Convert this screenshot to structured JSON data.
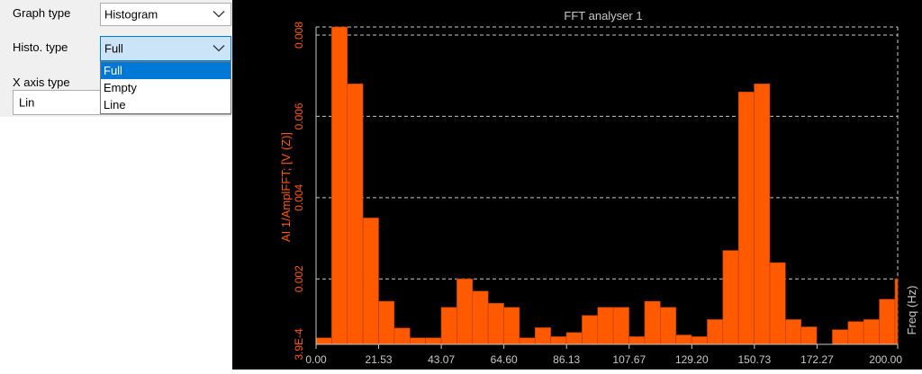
{
  "panel": {
    "graph_type_label": "Graph type",
    "graph_type_value": "Histogram",
    "histo_type_label": "Histo. type",
    "histo_type_value": "Full",
    "histo_options": [
      "Full",
      "Empty",
      "Line"
    ],
    "x_axis_type_label": "X axis type",
    "x_axis_type_value": "Lin"
  },
  "colors": {
    "bar": "#ff5a00",
    "bar_edge": "#b83a00",
    "axis_text": "#ff5a00",
    "title_text": "#c8c8c8",
    "grid": "#c8c8c8"
  },
  "chart_data": {
    "type": "bar",
    "title": "FFT analyser 1",
    "ylabel": "AI 1/AmplFFT; [V (Z)]",
    "xlabel": "Freq (Hz)",
    "x_ticks": [
      "0.00",
      "21.53",
      "43.07",
      "64.60",
      "86.13",
      "107.67",
      "129.20",
      "150.73",
      "172.27",
      "200.00"
    ],
    "y_ticks": [
      "3.9E-4",
      "0.002",
      "0.004",
      "0.006",
      "0.008"
    ],
    "ylim": [
      0.00039,
      0.0082
    ],
    "xlim": [
      0,
      200
    ],
    "grid": true,
    "bin_width": 5.38,
    "values": [
      0.00055,
      0.0082,
      0.0068,
      0.0035,
      0.00145,
      0.00079,
      0.00055,
      0.00055,
      0.0013,
      0.002,
      0.0017,
      0.0014,
      0.0013,
      0.00055,
      0.0008,
      0.00058,
      0.00068,
      0.0011,
      0.0013,
      0.0013,
      0.00058,
      0.00145,
      0.0013,
      0.00062,
      0.00058,
      0.001,
      0.0027,
      0.0066,
      0.0068,
      0.0024,
      0.001,
      0.00082,
      0.00039,
      0.00075,
      0.00095,
      0.001,
      0.0015,
      0.002
    ]
  }
}
